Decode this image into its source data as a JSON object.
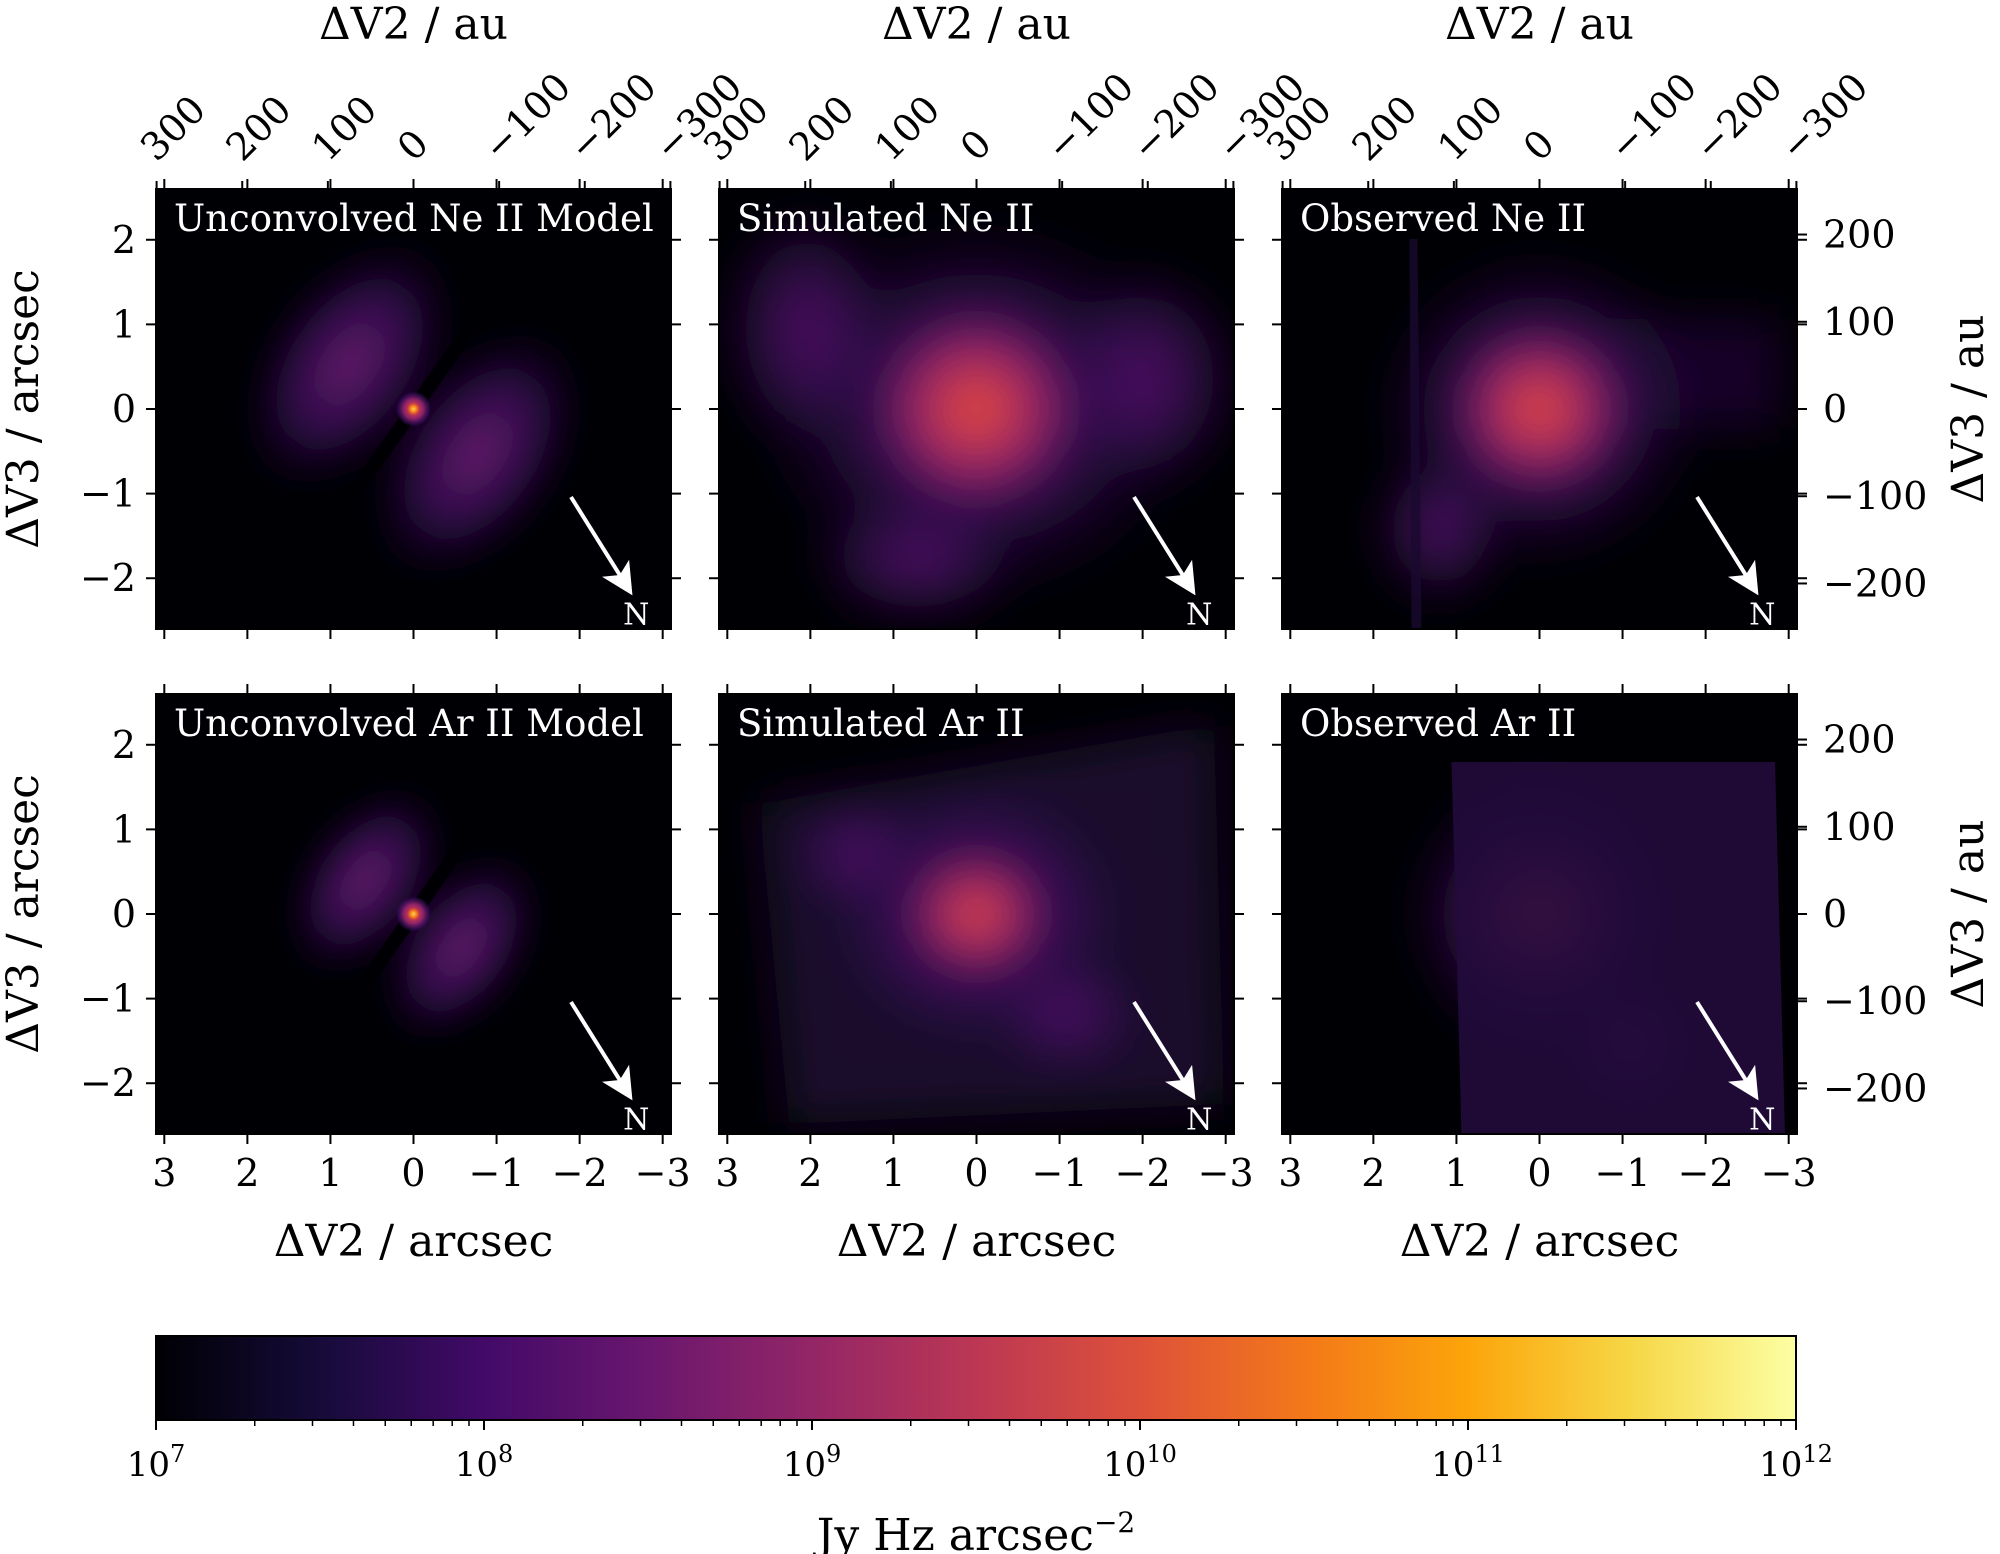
{
  "chart_data": {
    "type": "heatmap",
    "layout": "2x3 grid of image panels",
    "panels": [
      {
        "title": "Unconvolved Ne II Model",
        "row": 0,
        "col": 0,
        "morphology": "model",
        "tilt_deg": 35,
        "aperture": {
          "rx": 0.2,
          "ry": 0.15
        },
        "beam": null
      },
      {
        "title": "Simulated Ne II",
        "row": 0,
        "col": 1,
        "morphology": "simulated",
        "aperture": {
          "rx": 0.4,
          "ry": 0.37
        },
        "beam": {
          "x": 2.5,
          "y": -2.0,
          "rx": 0.37,
          "ry": 0.37
        }
      },
      {
        "title": "Observed Ne II",
        "row": 0,
        "col": 2,
        "morphology": "observed",
        "aperture": {
          "rx": 0.3,
          "ry": 0.29
        },
        "beam": {
          "x": 2.5,
          "y": -2.0,
          "rx": 0.3,
          "ry": 0.3
        }
      },
      {
        "title": "Unconvolved Ar II Model",
        "row": 1,
        "col": 0,
        "morphology": "model",
        "tilt_deg": 35,
        "aperture": {
          "rx": 0.09,
          "ry": 0.09
        },
        "beam": null
      },
      {
        "title": "Simulated Ar II",
        "row": 1,
        "col": 1,
        "morphology": "simulated-ar",
        "aperture": {
          "rx": 0.25,
          "ry": 0.18
        },
        "beam": {
          "x": 2.5,
          "y": -2.0,
          "rx": 0.28,
          "ry": 0.18
        }
      },
      {
        "title": "Observed Ar II",
        "row": 1,
        "col": 2,
        "morphology": "observed-ar",
        "aperture": {
          "rx": 0.2,
          "ry": 0.15
        },
        "beam": {
          "x": 2.5,
          "y": -2.0,
          "rx": 0.21,
          "ry": 0.16
        }
      }
    ],
    "xlim": [
      3.1,
      -3.1
    ],
    "ylim": [
      -2.6,
      2.6
    ],
    "x_ticks": [
      3,
      2,
      1,
      0,
      -1,
      -2,
      -3
    ],
    "y_ticks": [
      2,
      1,
      0,
      -1,
      -2
    ],
    "xlabel": "ΔV2 / arcsec",
    "ylabel": "ΔV3 / arcsec",
    "top_xlabel": "ΔV2 / au",
    "top_x_ticks": [
      300,
      200,
      100,
      0,
      -100,
      -200,
      -300
    ],
    "right_ylabel": "ΔV3 / au",
    "right_y_ticks": [
      200,
      100,
      0,
      -100,
      -200
    ],
    "au_per_arcsec": 97,
    "north_label": "N",
    "north_arrow_angle_deg": -58,
    "aperture_color": "#7fe62e",
    "beam_color": "#d9d9d9",
    "colorbar": {
      "colormap": "inferno",
      "scale": "log",
      "range": [
        10000000.0,
        1000000000000.0
      ],
      "ticks": [
        {
          "base": "10",
          "exp": "7"
        },
        {
          "base": "10",
          "exp": "8"
        },
        {
          "base": "10",
          "exp": "9"
        },
        {
          "base": "10",
          "exp": "10"
        },
        {
          "base": "10",
          "exp": "11"
        },
        {
          "base": "10",
          "exp": "12"
        }
      ],
      "label": "Jy Hz arcsec",
      "label_exp": "−2"
    }
  }
}
